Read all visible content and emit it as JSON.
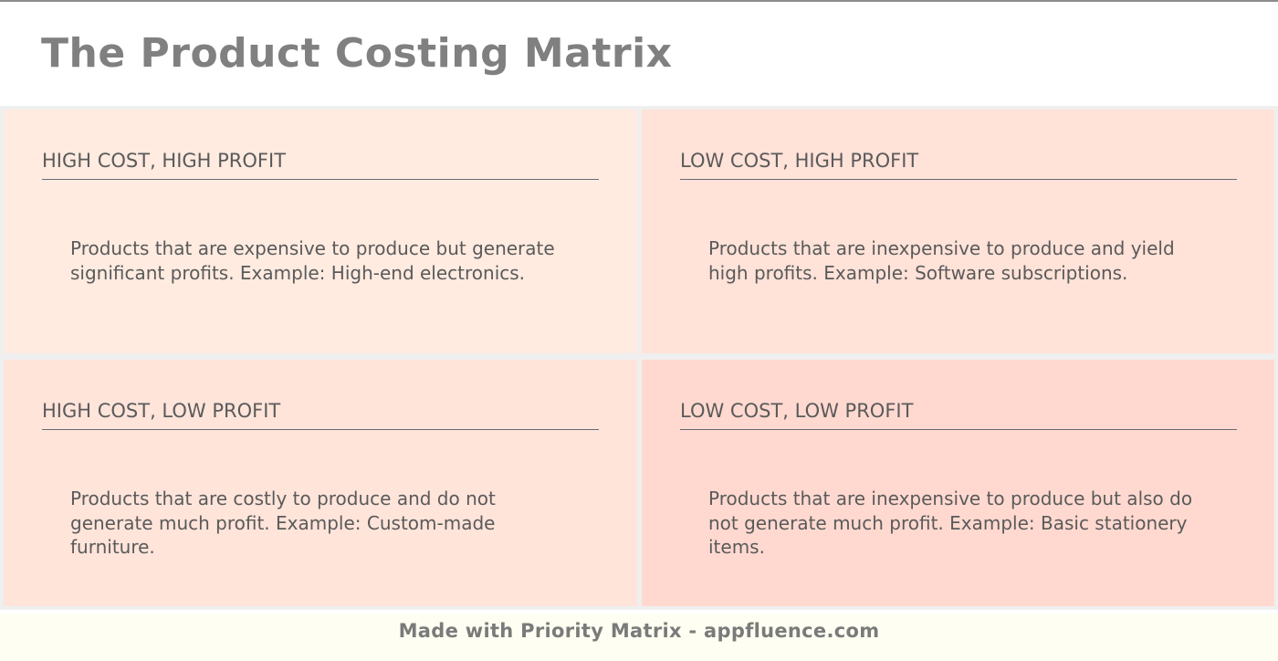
{
  "header": {
    "title": "The Product Costing Matrix"
  },
  "quadrants": [
    {
      "title": "HIGH COST, HIGH PROFIT",
      "description": "Products that are expensive to produce but generate significant profits. Example: High-end electronics.",
      "color": "#ffebe0"
    },
    {
      "title": "LOW COST, HIGH PROFIT",
      "description": "Products that are inexpensive to produce and yield high profits. Example: Software subscriptions.",
      "color": "#ffe2d8"
    },
    {
      "title": "HIGH COST, LOW PROFIT",
      "description": "Products that are costly to produce and do not generate much profit. Example: Custom-made furniture.",
      "color": "#ffe4da"
    },
    {
      "title": "LOW COST, LOW PROFIT",
      "description": "Products that are inexpensive to produce but also do not generate much profit. Example: Basic stationery items.",
      "color": "#ffd9d0"
    }
  ],
  "footer": {
    "text": "Made with Priority Matrix - appfluence.com"
  }
}
